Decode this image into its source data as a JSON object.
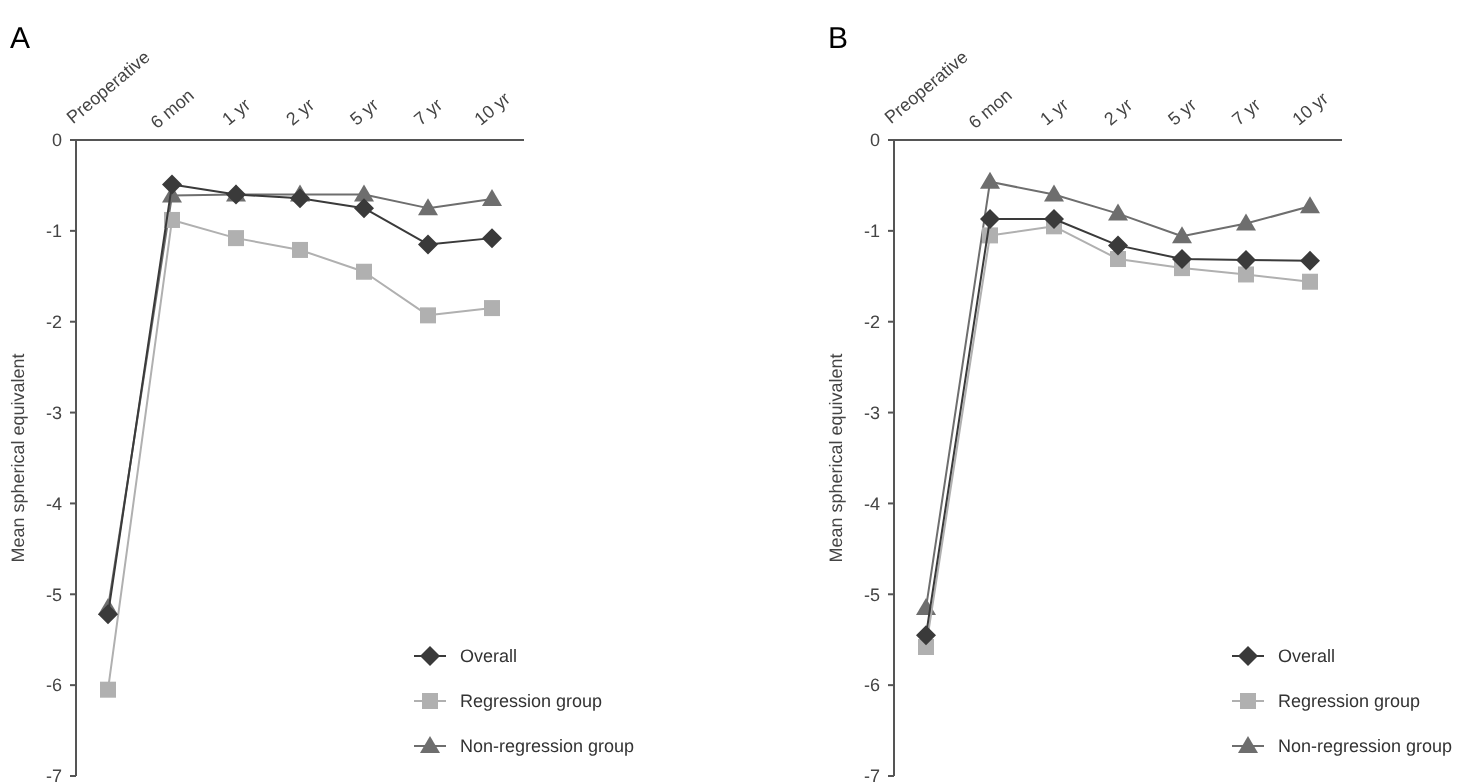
{
  "chart_data": [
    {
      "type": "line",
      "title": "A",
      "ylabel": "Mean spherical equivalent",
      "categories": [
        "Preoperative",
        "6 mon",
        "1 yr",
        "2 yr",
        "5 yr",
        "7 yr",
        "10 yr"
      ],
      "ylim": [
        -7,
        0
      ],
      "yticks": [
        -7,
        -6,
        -5,
        -4,
        -3,
        -2,
        -1,
        0
      ],
      "legend": "bottom right",
      "grid": false,
      "series": [
        {
          "name": "Overall",
          "color": "#3a3a3a",
          "marker": "diamond",
          "values": [
            -5.22,
            -0.49,
            -0.6,
            -0.64,
            -0.75,
            -1.15,
            -1.08
          ]
        },
        {
          "name": "Regression group",
          "color": "#b0b0b0",
          "marker": "square",
          "values": [
            -6.05,
            -0.88,
            -1.08,
            -1.21,
            -1.45,
            -1.93,
            -1.85
          ]
        },
        {
          "name": "Non-regression group",
          "color": "#6e6e6e",
          "marker": "triangle",
          "values": [
            -5.15,
            -0.61,
            -0.6,
            -0.6,
            -0.6,
            -0.75,
            -0.65
          ]
        }
      ]
    },
    {
      "type": "line",
      "title": "B",
      "ylabel": "Mean spherical equivalent",
      "categories": [
        "Preoperative",
        "6 mon",
        "1 yr",
        "2 yr",
        "5 yr",
        "7 yr",
        "10 yr"
      ],
      "ylim": [
        -7,
        0
      ],
      "yticks": [
        -7,
        -6,
        -5,
        -4,
        -3,
        -2,
        -1,
        0
      ],
      "legend": "bottom right",
      "grid": false,
      "series": [
        {
          "name": "Overall",
          "color": "#3a3a3a",
          "marker": "diamond",
          "values": [
            -5.45,
            -0.87,
            -0.87,
            -1.16,
            -1.31,
            -1.32,
            -1.33
          ]
        },
        {
          "name": "Regression group",
          "color": "#b0b0b0",
          "marker": "square",
          "values": [
            -5.58,
            -1.05,
            -0.95,
            -1.31,
            -1.41,
            -1.48,
            -1.56
          ]
        },
        {
          "name": "Non-regression group",
          "color": "#6e6e6e",
          "marker": "triangle",
          "values": [
            -5.15,
            -0.46,
            -0.6,
            -0.81,
            -1.06,
            -0.92,
            -0.73
          ]
        }
      ]
    }
  ]
}
